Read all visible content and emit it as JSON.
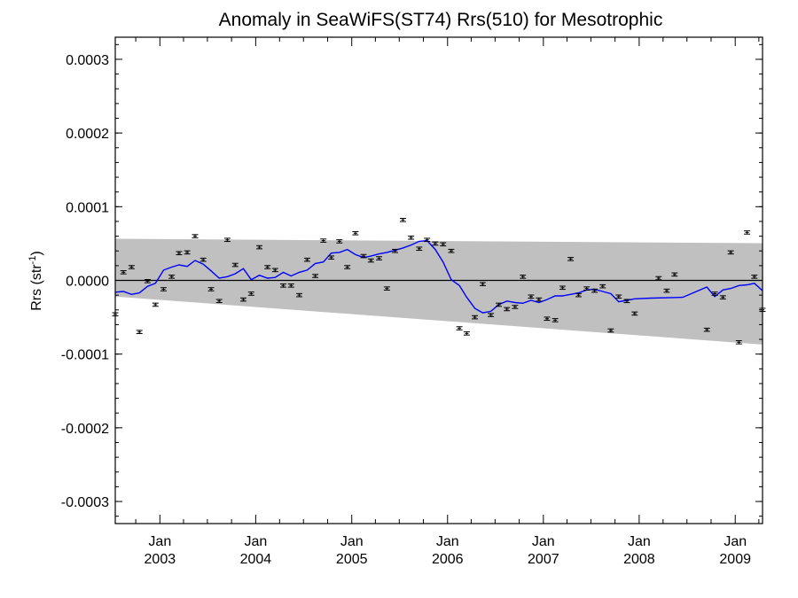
{
  "chart_data": {
    "type": "line",
    "title": "Anomaly in SeaWiFS(ST74) Rrs(510) for Mesotrophic",
    "ylabel": "Rrs (str",
    "ylabel_sup": "-1",
    "ylabel_close": ")",
    "xlim": [
      "2002-07-15",
      "2009-04-15"
    ],
    "ylim": [
      -0.00033,
      0.00033
    ],
    "grid": false,
    "y_ticks": [
      {
        "value": 0.0003,
        "label": "0.0003"
      },
      {
        "value": 0.0002,
        "label": "0.0002"
      },
      {
        "value": 0.0001,
        "label": "0.0001"
      },
      {
        "value": 0.0,
        "label": "0.0000"
      },
      {
        "value": -0.0001,
        "label": "-0.0001"
      },
      {
        "value": -0.0002,
        "label": "-0.0002"
      },
      {
        "value": -0.0003,
        "label": "-0.0003"
      }
    ],
    "x_ticks": [
      {
        "date": "2003-01-01",
        "month": "Jan",
        "year": "2003"
      },
      {
        "date": "2004-01-01",
        "month": "Jan",
        "year": "2004"
      },
      {
        "date": "2005-01-01",
        "month": "Jan",
        "year": "2005"
      },
      {
        "date": "2006-01-01",
        "month": "Jan",
        "year": "2006"
      },
      {
        "date": "2007-01-01",
        "month": "Jan",
        "year": "2007"
      },
      {
        "date": "2008-01-01",
        "month": "Jan",
        "year": "2008"
      },
      {
        "date": "2009-01-01",
        "month": "Jan",
        "year": "2009"
      }
    ],
    "band": {
      "start": {
        "date": "2002-07-15",
        "upper": 5.65e-05,
        "lower": -2.2e-05
      },
      "end": {
        "date": "2009-04-15",
        "upper": 5.05e-05,
        "lower": -8.7e-05
      },
      "color": "#c0c0c0"
    },
    "zero_line": 0.0,
    "trend_line": {
      "color": "#0000ff",
      "points": [
        [
          "2002-07-15",
          -1.6e-05
        ],
        [
          "2002-08-15",
          -1.5e-05
        ],
        [
          "2002-09-15",
          -1.9e-05
        ],
        [
          "2002-10-15",
          -1.7e-05
        ],
        [
          "2002-11-15",
          -8e-06
        ],
        [
          "2002-12-15",
          -4e-06
        ],
        [
          "2003-01-15",
          1.4e-05
        ],
        [
          "2003-02-15",
          1.8e-05
        ],
        [
          "2003-03-15",
          2.1e-05
        ],
        [
          "2003-04-15",
          1.9e-05
        ],
        [
          "2003-05-15",
          2.7e-05
        ],
        [
          "2003-06-15",
          2.2e-05
        ],
        [
          "2003-07-15",
          1.3e-05
        ],
        [
          "2003-08-15",
          3e-06
        ],
        [
          "2003-09-15",
          5e-06
        ],
        [
          "2003-10-15",
          9e-06
        ],
        [
          "2003-11-15",
          1.6e-05
        ],
        [
          "2003-12-15",
          1e-06
        ],
        [
          "2004-01-15",
          7e-06
        ],
        [
          "2004-02-15",
          3e-06
        ],
        [
          "2004-03-15",
          4e-06
        ],
        [
          "2004-04-15",
          1.1e-05
        ],
        [
          "2004-05-15",
          6e-06
        ],
        [
          "2004-06-15",
          1.1e-05
        ],
        [
          "2004-07-15",
          1.4e-05
        ],
        [
          "2004-08-15",
          2.3e-05
        ],
        [
          "2004-09-15",
          2.5e-05
        ],
        [
          "2004-10-15",
          3.7e-05
        ],
        [
          "2004-11-15",
          3.8e-05
        ],
        [
          "2004-12-15",
          4.2e-05
        ],
        [
          "2005-01-15",
          3.5e-05
        ],
        [
          "2005-02-15",
          3.1e-05
        ],
        [
          "2005-03-15",
          3.3e-05
        ],
        [
          "2005-04-15",
          3.6e-05
        ],
        [
          "2005-05-15",
          3.8e-05
        ],
        [
          "2005-06-15",
          4.1e-05
        ],
        [
          "2005-07-15",
          4.4e-05
        ],
        [
          "2005-08-15",
          4.8e-05
        ],
        [
          "2005-09-15",
          5.3e-05
        ],
        [
          "2005-10-15",
          5.4e-05
        ],
        [
          "2005-11-15",
          4.2e-05
        ],
        [
          "2005-12-15",
          2.5e-05
        ],
        [
          "2006-01-15",
          1e-06
        ],
        [
          "2006-02-15",
          -7e-06
        ],
        [
          "2006-03-15",
          -2.3e-05
        ],
        [
          "2006-04-15",
          -3.8e-05
        ],
        [
          "2006-05-15",
          -4.4e-05
        ],
        [
          "2006-06-15",
          -4.2e-05
        ],
        [
          "2006-07-15",
          -3.3e-05
        ],
        [
          "2006-08-15",
          -2.8e-05
        ],
        [
          "2006-09-15",
          -3e-05
        ],
        [
          "2006-10-15",
          -3.1e-05
        ],
        [
          "2006-11-15",
          -2.7e-05
        ],
        [
          "2006-12-15",
          -3e-05
        ],
        [
          "2007-01-15",
          -2.6e-05
        ],
        [
          "2007-02-15",
          -2.1e-05
        ],
        [
          "2007-03-15",
          -2.1e-05
        ],
        [
          "2007-04-15",
          -1.9e-05
        ],
        [
          "2007-05-15",
          -1.7e-05
        ],
        [
          "2007-06-15",
          -1.3e-05
        ],
        [
          "2007-07-15",
          -1.2e-05
        ],
        [
          "2007-08-15",
          -1.5e-05
        ],
        [
          "2007-09-15",
          -1.8e-05
        ],
        [
          "2007-10-15",
          -2.9e-05
        ],
        [
          "2007-11-15",
          -2.7e-05
        ],
        [
          "2007-12-15",
          -2.5e-05
        ],
        [
          "2008-02-15",
          -2.4e-05
        ],
        [
          "2008-06-15",
          -2.3e-05
        ],
        [
          "2008-09-15",
          -9e-06
        ],
        [
          "2008-10-15",
          -2.2e-05
        ],
        [
          "2008-11-15",
          -1.3e-05
        ],
        [
          "2008-12-15",
          -1.1e-05
        ],
        [
          "2009-01-15",
          -7e-06
        ],
        [
          "2009-02-15",
          -6e-06
        ],
        [
          "2009-03-15",
          -4e-06
        ],
        [
          "2009-04-15",
          -1.4e-05
        ]
      ]
    },
    "anomaly_points": [
      [
        "2002-07-15",
        -4.6e-05
      ],
      [
        "2002-08-15",
        1.1e-05
      ],
      [
        "2002-09-15",
        1.8e-05
      ],
      [
        "2002-10-15",
        -7e-05
      ],
      [
        "2002-11-15",
        -1e-06
      ],
      [
        "2002-12-15",
        -3.3e-05
      ],
      [
        "2003-01-15",
        -1.2e-05
      ],
      [
        "2003-02-15",
        5e-06
      ],
      [
        "2003-03-15",
        3.7e-05
      ],
      [
        "2003-04-15",
        3.8e-05
      ],
      [
        "2003-05-15",
        6e-05
      ],
      [
        "2003-06-15",
        2.8e-05
      ],
      [
        "2003-07-15",
        -1.2e-05
      ],
      [
        "2003-08-15",
        -2.8e-05
      ],
      [
        "2003-09-15",
        5.5e-05
      ],
      [
        "2003-10-15",
        2.1e-05
      ],
      [
        "2003-11-15",
        -2.6e-05
      ],
      [
        "2003-12-15",
        -1.8e-05
      ],
      [
        "2004-01-15",
        4.5e-05
      ],
      [
        "2004-02-15",
        1.8e-05
      ],
      [
        "2004-03-15",
        1.4e-05
      ],
      [
        "2004-04-15",
        -7e-06
      ],
      [
        "2004-05-15",
        -7e-06
      ],
      [
        "2004-06-15",
        -2e-05
      ],
      [
        "2004-07-15",
        2.8e-05
      ],
      [
        "2004-08-15",
        6e-06
      ],
      [
        "2004-09-15",
        5.4e-05
      ],
      [
        "2004-10-15",
        3.1e-05
      ],
      [
        "2004-11-15",
        5.3e-05
      ],
      [
        "2004-12-15",
        1.8e-05
      ],
      [
        "2005-01-15",
        6.4e-05
      ],
      [
        "2005-02-15",
        3.3e-05
      ],
      [
        "2005-03-15",
        2.7e-05
      ],
      [
        "2005-04-15",
        3e-05
      ],
      [
        "2005-05-15",
        -1.1e-05
      ],
      [
        "2005-06-15",
        4e-05
      ],
      [
        "2005-07-15",
        8.2e-05
      ],
      [
        "2005-08-15",
        5.8e-05
      ],
      [
        "2005-09-15",
        4.3e-05
      ],
      [
        "2005-10-15",
        5.5e-05
      ],
      [
        "2005-11-15",
        5e-05
      ],
      [
        "2005-12-15",
        4.9e-05
      ],
      [
        "2006-01-15",
        4e-05
      ],
      [
        "2006-02-15",
        -6.5e-05
      ],
      [
        "2006-03-15",
        -7.2e-05
      ],
      [
        "2006-04-15",
        -5e-05
      ],
      [
        "2006-05-15",
        -5e-06
      ],
      [
        "2006-06-15",
        -4.7e-05
      ],
      [
        "2006-07-15",
        -3.3e-05
      ],
      [
        "2006-08-15",
        -3.9e-05
      ],
      [
        "2006-09-15",
        -3.6e-05
      ],
      [
        "2006-10-15",
        5e-06
      ],
      [
        "2006-11-15",
        -2.2e-05
      ],
      [
        "2006-12-15",
        -2.6e-05
      ],
      [
        "2007-01-15",
        -5.2e-05
      ],
      [
        "2007-02-15",
        -5.4e-05
      ],
      [
        "2007-03-15",
        -1e-05
      ],
      [
        "2007-04-15",
        2.9e-05
      ],
      [
        "2007-05-15",
        -2e-05
      ],
      [
        "2007-06-15",
        -1.1e-05
      ],
      [
        "2007-07-15",
        -1.4e-05
      ],
      [
        "2007-08-15",
        -8e-06
      ],
      [
        "2007-09-15",
        -6.8e-05
      ],
      [
        "2007-10-15",
        -2.2e-05
      ],
      [
        "2007-11-15",
        -2.8e-05
      ],
      [
        "2007-12-15",
        -4.5e-05
      ],
      [
        "2008-03-15",
        3e-06
      ],
      [
        "2008-04-15",
        -1.4e-05
      ],
      [
        "2008-05-15",
        8e-06
      ],
      [
        "2008-09-15",
        -6.7e-05
      ],
      [
        "2008-10-15",
        -1.8e-05
      ],
      [
        "2008-11-15",
        -2.3e-05
      ],
      [
        "2008-12-15",
        3.8e-05
      ],
      [
        "2009-01-15",
        -8.4e-05
      ],
      [
        "2009-02-15",
        6.5e-05
      ],
      [
        "2009-03-15",
        5e-06
      ],
      [
        "2009-04-15",
        -4e-05
      ]
    ]
  }
}
